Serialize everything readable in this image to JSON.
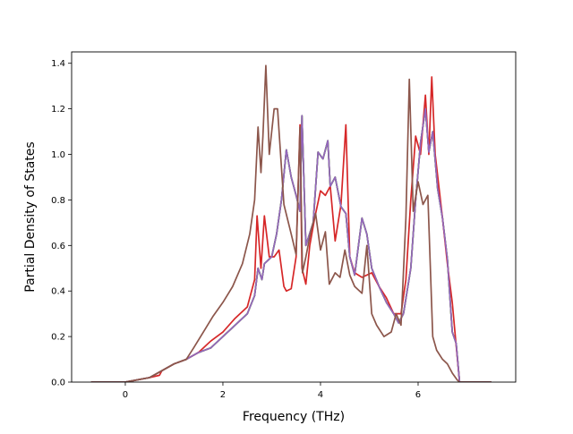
{
  "chart_data": {
    "type": "line",
    "title": "",
    "xlabel": "Frequency (THz)",
    "ylabel": "Partial Density of States",
    "xlim": [
      -1.1,
      8.0
    ],
    "ylim": [
      0.0,
      1.45
    ],
    "xticks": [
      0,
      2,
      4,
      6
    ],
    "xtick_labels": [
      "0",
      "2",
      "4",
      "6"
    ],
    "yticks": [
      0.0,
      0.2,
      0.4,
      0.6,
      0.8,
      1.0,
      1.2,
      1.4
    ],
    "ytick_labels": [
      "0.0",
      "0.2",
      "0.4",
      "0.6",
      "0.8",
      "1.0",
      "1.2",
      "1.4"
    ],
    "grid": false,
    "legend": false,
    "series": [
      {
        "color": "#1f77b4",
        "x": [
          -0.7,
          0.0,
          0.5,
          0.75,
          1.0,
          1.25,
          1.5,
          1.75,
          2.0,
          2.25,
          2.5,
          2.65,
          2.72,
          2.8,
          2.85,
          3.0,
          3.1,
          3.2,
          3.3,
          3.4,
          3.5,
          3.58,
          3.62,
          3.7,
          3.85,
          3.95,
          4.05,
          4.15,
          4.2,
          4.3,
          4.42,
          4.52,
          4.6,
          4.7,
          4.85,
          4.95,
          5.05,
          5.2,
          5.35,
          5.5,
          5.6,
          5.7,
          5.85,
          5.95,
          6.05,
          6.15,
          6.22,
          6.3,
          6.4,
          6.5,
          6.6,
          6.7,
          6.78,
          6.85,
          7.5
        ],
        "y": [
          0.0,
          0.0,
          0.02,
          0.05,
          0.08,
          0.1,
          0.13,
          0.15,
          0.2,
          0.25,
          0.3,
          0.38,
          0.5,
          0.45,
          0.52,
          0.55,
          0.65,
          0.8,
          1.02,
          0.9,
          0.82,
          0.75,
          1.17,
          0.6,
          0.7,
          1.01,
          0.98,
          1.06,
          0.86,
          0.9,
          0.77,
          0.74,
          0.55,
          0.47,
          0.72,
          0.65,
          0.5,
          0.42,
          0.35,
          0.3,
          0.26,
          0.3,
          0.5,
          0.8,
          1.05,
          1.2,
          1.01,
          1.1,
          0.85,
          0.72,
          0.54,
          0.22,
          0.17,
          0.0,
          0.0
        ]
      },
      {
        "color": "#ff7f0e",
        "x": [
          -0.7,
          0.0,
          0.5,
          0.75,
          1.0,
          1.25,
          1.5,
          1.75,
          2.0,
          2.25,
          2.5,
          2.65,
          2.72,
          2.8,
          2.85,
          3.0,
          3.1,
          3.2,
          3.3,
          3.4,
          3.5,
          3.58,
          3.62,
          3.7,
          3.85,
          3.95,
          4.05,
          4.15,
          4.2,
          4.3,
          4.42,
          4.52,
          4.6,
          4.7,
          4.85,
          4.95,
          5.05,
          5.2,
          5.35,
          5.5,
          5.6,
          5.7,
          5.85,
          5.95,
          6.05,
          6.15,
          6.22,
          6.3,
          6.4,
          6.5,
          6.6,
          6.7,
          6.78,
          6.85,
          7.5
        ],
        "y": [
          0.0,
          0.0,
          0.02,
          0.05,
          0.08,
          0.1,
          0.13,
          0.15,
          0.2,
          0.25,
          0.3,
          0.38,
          0.5,
          0.45,
          0.52,
          0.55,
          0.65,
          0.8,
          1.02,
          0.9,
          0.82,
          0.75,
          1.17,
          0.6,
          0.7,
          1.01,
          0.98,
          1.06,
          0.86,
          0.9,
          0.77,
          0.74,
          0.55,
          0.47,
          0.72,
          0.65,
          0.5,
          0.42,
          0.35,
          0.3,
          0.26,
          0.3,
          0.5,
          0.8,
          1.05,
          1.2,
          1.01,
          1.1,
          0.85,
          0.72,
          0.54,
          0.22,
          0.17,
          0.0,
          0.0
        ]
      },
      {
        "color": "#2ca02c",
        "x": [
          -0.7,
          0.0,
          0.5,
          0.75,
          1.0,
          1.25,
          1.5,
          1.75,
          2.0,
          2.25,
          2.5,
          2.65,
          2.72,
          2.8,
          2.85,
          3.0,
          3.1,
          3.2,
          3.3,
          3.4,
          3.5,
          3.58,
          3.62,
          3.7,
          3.85,
          3.95,
          4.05,
          4.15,
          4.2,
          4.3,
          4.42,
          4.52,
          4.6,
          4.7,
          4.85,
          4.95,
          5.05,
          5.2,
          5.35,
          5.5,
          5.6,
          5.7,
          5.85,
          5.95,
          6.05,
          6.15,
          6.22,
          6.3,
          6.4,
          6.5,
          6.6,
          6.7,
          6.78,
          6.85,
          7.5
        ],
        "y": [
          0.0,
          0.0,
          0.02,
          0.05,
          0.08,
          0.1,
          0.13,
          0.15,
          0.2,
          0.25,
          0.3,
          0.38,
          0.5,
          0.45,
          0.52,
          0.55,
          0.65,
          0.8,
          1.02,
          0.9,
          0.82,
          0.75,
          1.17,
          0.6,
          0.7,
          1.01,
          0.98,
          1.06,
          0.86,
          0.9,
          0.77,
          0.74,
          0.55,
          0.47,
          0.72,
          0.65,
          0.5,
          0.42,
          0.35,
          0.3,
          0.26,
          0.3,
          0.5,
          0.8,
          1.05,
          1.2,
          1.01,
          1.1,
          0.85,
          0.72,
          0.54,
          0.22,
          0.17,
          0.0,
          0.0
        ]
      },
      {
        "color": "#d62728",
        "x": [
          -0.7,
          0.0,
          0.5,
          0.7,
          0.75,
          1.0,
          1.25,
          1.5,
          1.75,
          2.0,
          2.25,
          2.5,
          2.65,
          2.7,
          2.78,
          2.85,
          2.95,
          3.05,
          3.15,
          3.25,
          3.3,
          3.4,
          3.5,
          3.58,
          3.62,
          3.7,
          3.78,
          3.88,
          4.0,
          4.1,
          4.2,
          4.3,
          4.42,
          4.52,
          4.6,
          4.7,
          4.85,
          4.95,
          5.05,
          5.2,
          5.35,
          5.5,
          5.65,
          5.75,
          5.85,
          5.95,
          6.05,
          6.15,
          6.22,
          6.28,
          6.35,
          6.5,
          6.6,
          6.7,
          6.78,
          6.85,
          7.5
        ],
        "y": [
          0.0,
          0.0,
          0.02,
          0.03,
          0.05,
          0.08,
          0.1,
          0.13,
          0.18,
          0.22,
          0.28,
          0.33,
          0.45,
          0.73,
          0.5,
          0.73,
          0.55,
          0.55,
          0.58,
          0.42,
          0.4,
          0.41,
          0.55,
          1.13,
          0.5,
          0.43,
          0.6,
          0.72,
          0.84,
          0.82,
          0.86,
          0.62,
          0.78,
          1.13,
          0.55,
          0.48,
          0.46,
          0.47,
          0.48,
          0.42,
          0.37,
          0.3,
          0.3,
          0.45,
          0.8,
          1.08,
          1.0,
          1.26,
          1.0,
          1.34,
          1.0,
          0.72,
          0.52,
          0.35,
          0.16,
          0.0,
          0.0
        ]
      },
      {
        "color": "#9467bd",
        "x": [
          -0.7,
          0.0,
          0.5,
          0.75,
          1.0,
          1.25,
          1.5,
          1.75,
          2.0,
          2.25,
          2.5,
          2.65,
          2.72,
          2.8,
          2.85,
          3.0,
          3.1,
          3.2,
          3.3,
          3.4,
          3.5,
          3.58,
          3.62,
          3.7,
          3.85,
          3.95,
          4.05,
          4.15,
          4.2,
          4.3,
          4.42,
          4.52,
          4.6,
          4.7,
          4.85,
          4.95,
          5.05,
          5.2,
          5.35,
          5.5,
          5.6,
          5.7,
          5.85,
          5.95,
          6.05,
          6.15,
          6.22,
          6.3,
          6.4,
          6.5,
          6.6,
          6.7,
          6.78,
          6.85,
          7.5
        ],
        "y": [
          0.0,
          0.0,
          0.02,
          0.05,
          0.08,
          0.1,
          0.13,
          0.15,
          0.2,
          0.25,
          0.3,
          0.38,
          0.5,
          0.45,
          0.52,
          0.55,
          0.65,
          0.8,
          1.02,
          0.9,
          0.82,
          0.75,
          1.17,
          0.6,
          0.7,
          1.01,
          0.98,
          1.06,
          0.86,
          0.9,
          0.77,
          0.74,
          0.55,
          0.47,
          0.72,
          0.65,
          0.5,
          0.42,
          0.35,
          0.3,
          0.26,
          0.3,
          0.5,
          0.8,
          1.05,
          1.2,
          1.01,
          1.1,
          0.85,
          0.72,
          0.54,
          0.22,
          0.17,
          0.0,
          0.0
        ]
      },
      {
        "color": "#8c564b",
        "x": [
          -0.7,
          0.0,
          0.5,
          0.75,
          1.0,
          1.25,
          1.4,
          1.6,
          1.8,
          2.0,
          2.2,
          2.4,
          2.55,
          2.65,
          2.72,
          2.78,
          2.82,
          2.88,
          2.95,
          3.05,
          3.12,
          3.25,
          3.4,
          3.5,
          3.58,
          3.63,
          3.7,
          3.8,
          3.9,
          4.0,
          4.1,
          4.18,
          4.3,
          4.4,
          4.5,
          4.6,
          4.7,
          4.85,
          4.95,
          5.05,
          5.15,
          5.3,
          5.45,
          5.55,
          5.65,
          5.75,
          5.82,
          5.9,
          6.0,
          6.1,
          6.2,
          6.3,
          6.38,
          6.5,
          6.6,
          6.7,
          6.8,
          6.85,
          7.5
        ],
        "y": [
          0.0,
          0.0,
          0.02,
          0.05,
          0.08,
          0.1,
          0.15,
          0.22,
          0.29,
          0.35,
          0.42,
          0.52,
          0.65,
          0.8,
          1.12,
          0.92,
          1.08,
          1.39,
          1.0,
          1.2,
          1.2,
          0.78,
          0.65,
          0.56,
          1.12,
          0.48,
          0.55,
          0.66,
          0.74,
          0.58,
          0.66,
          0.43,
          0.48,
          0.46,
          0.58,
          0.47,
          0.42,
          0.39,
          0.6,
          0.3,
          0.25,
          0.2,
          0.22,
          0.3,
          0.25,
          0.72,
          1.33,
          0.75,
          0.88,
          0.78,
          0.82,
          0.2,
          0.14,
          0.1,
          0.08,
          0.04,
          0.01,
          0.0,
          0.0
        ]
      }
    ]
  }
}
